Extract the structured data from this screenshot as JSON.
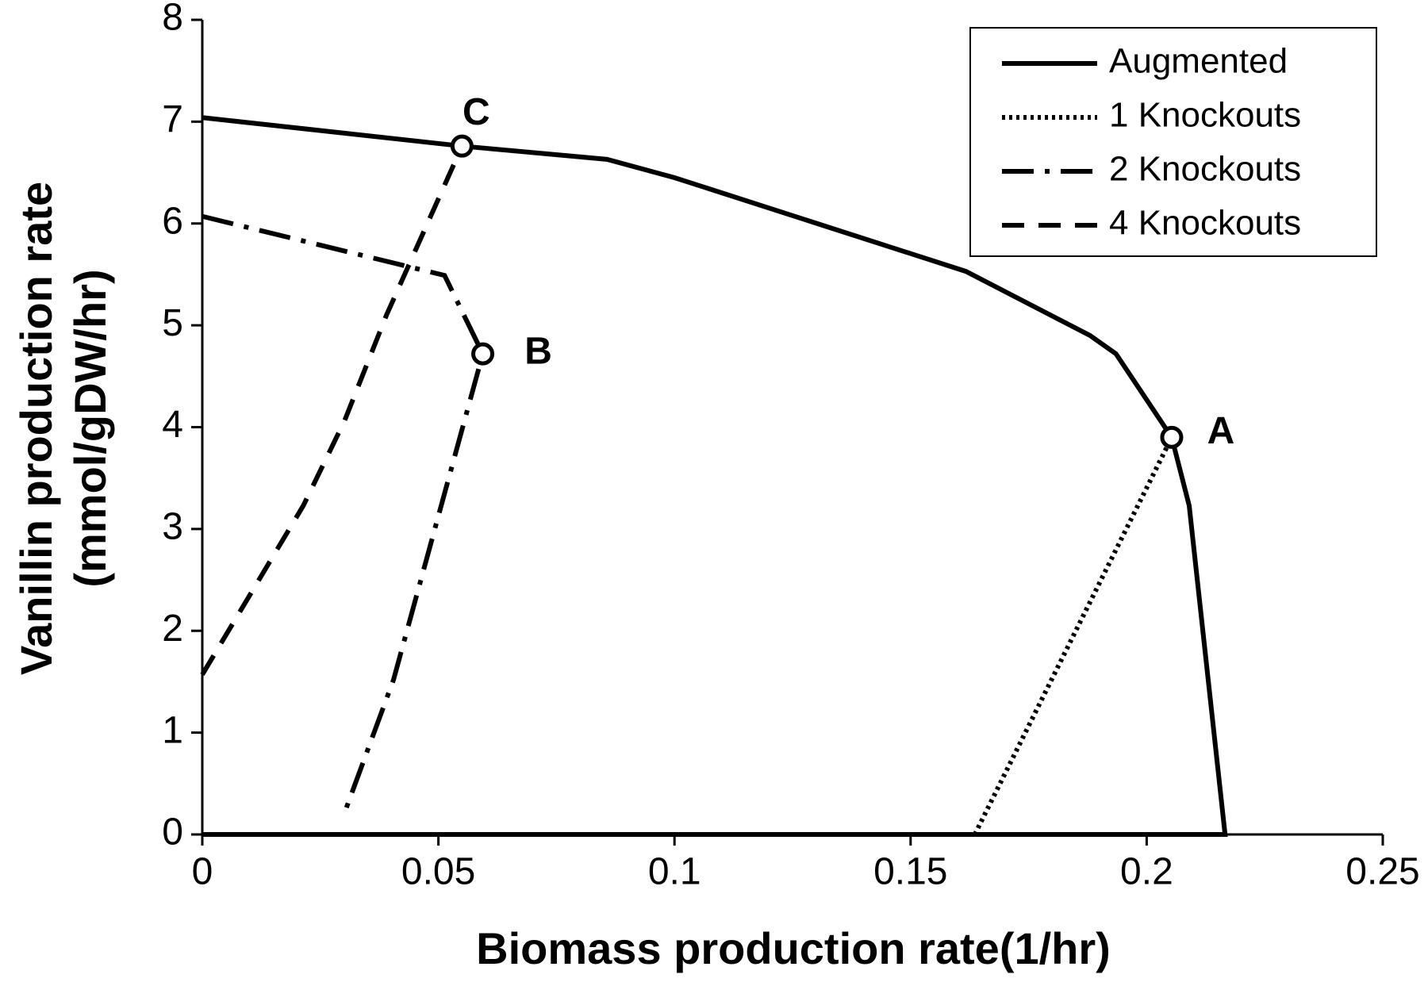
{
  "chart_data": {
    "type": "line",
    "xlabel": "Biomass production rate(1/hr)",
    "ylabel": [
      "Vanillin production rate",
      "(mmol/gDW/hr)"
    ],
    "xlim": [
      0,
      0.25
    ],
    "ylim": [
      0,
      8
    ],
    "xticks": [
      0,
      0.05,
      0.1,
      0.15,
      0.2,
      0.25
    ],
    "yticks": [
      0,
      1,
      2,
      3,
      4,
      5,
      6,
      7,
      8
    ],
    "legend": "upper right",
    "series": [
      {
        "name": "Augmented",
        "color": "#000000",
        "style": "solid",
        "x": [
          0,
          0.055,
          0.0857,
          0.1,
          0.1617,
          0.188,
          0.1935,
          0.2053,
          0.209,
          0.2166,
          0
        ],
        "values": [
          7.04,
          6.76,
          6.63,
          6.45,
          5.53,
          4.9,
          4.72,
          3.9,
          3.23,
          0,
          0
        ]
      },
      {
        "name": "1 Knockouts",
        "color": "#000000",
        "style": "dotted",
        "x": [
          0.1636,
          0.2053
        ],
        "values": [
          0,
          3.9
        ]
      },
      {
        "name": "2 Knockouts",
        "color": "#000000",
        "style": "dashdot",
        "x": [
          0,
          0.0513,
          0.0594,
          0.0405,
          0.0301
        ],
        "values": [
          6.07,
          5.49,
          4.72,
          1.52,
          0.21
        ]
      },
      {
        "name": "4 Knockouts",
        "color": "#000000",
        "style": "dashed",
        "x": [
          0,
          0.0214,
          0.0301,
          0.039,
          0.055
        ],
        "values": [
          1.57,
          3.23,
          4.06,
          5.1,
          6.76
        ]
      }
    ],
    "points": [
      {
        "label": "A",
        "x": 0.2053,
        "y": 3.9
      },
      {
        "label": "B",
        "x": 0.0594,
        "y": 4.72
      },
      {
        "label": "C",
        "x": 0.055,
        "y": 6.76
      }
    ]
  }
}
